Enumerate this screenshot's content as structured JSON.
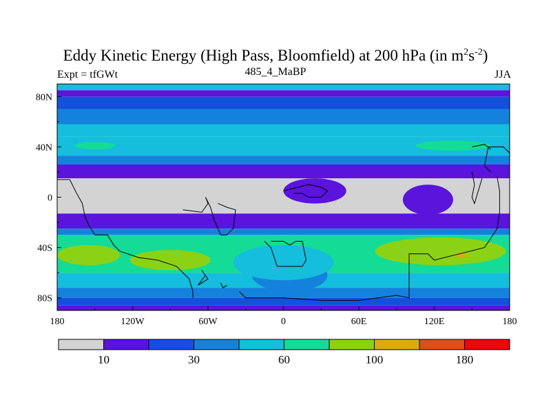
{
  "title_main": "Eddy Kinetic Energy (High Pass, Bloomfield) at 200 hPa (in m",
  "title_sup1": "2",
  "title_s": "s",
  "title_sup2": "-2",
  "title_close": ")",
  "subtitle_left": "Expt = tfGWt",
  "subtitle_center": "485_4_MaBP",
  "subtitle_right": "JJA",
  "chart_data": {
    "type": "heatmap",
    "title": "Eddy Kinetic Energy (High Pass, Bloomfield) at 200 hPa (in m2s-2)",
    "xlim": [
      -180,
      180
    ],
    "ylim": [
      -90,
      90
    ],
    "x_ticks": [
      {
        "value": -180,
        "label": "180"
      },
      {
        "value": -120,
        "label": "120W"
      },
      {
        "value": -60,
        "label": "60W"
      },
      {
        "value": 0,
        "label": "0"
      },
      {
        "value": 60,
        "label": "60E"
      },
      {
        "value": 120,
        "label": "120E"
      },
      {
        "value": 180,
        "label": "180"
      }
    ],
    "y_ticks": [
      {
        "value": 80,
        "label": "80N"
      },
      {
        "value": 40,
        "label": "40N"
      },
      {
        "value": 0,
        "label": "0"
      },
      {
        "value": -40,
        "label": "40S"
      },
      {
        "value": -80,
        "label": "80S"
      }
    ],
    "colorbar": {
      "colors": [
        "#d3d3d3",
        "#5a14dc",
        "#1450dc",
        "#1482dc",
        "#14bedc",
        "#14dc96",
        "#8cd214",
        "#dcaa14",
        "#dc5014",
        "#e60a0a"
      ],
      "labels": [
        {
          "boundary": 1,
          "label": "10"
        },
        {
          "boundary": 3,
          "label": "30"
        },
        {
          "boundary": 5,
          "label": "60"
        },
        {
          "boundary": 7,
          "label": "100"
        },
        {
          "boundary": 9,
          "label": "180"
        }
      ]
    },
    "zonal_bands": [
      {
        "lat_top": 90,
        "lat_bottom": 85,
        "level": 4
      },
      {
        "lat_top": 85,
        "lat_bottom": 80,
        "level": 1
      },
      {
        "lat_top": 80,
        "lat_bottom": 70,
        "level": 2
      },
      {
        "lat_top": 70,
        "lat_bottom": 58,
        "level": 3
      },
      {
        "lat_top": 58,
        "lat_bottom": 48,
        "level": 4
      },
      {
        "lat_top": 48,
        "lat_bottom": 33,
        "level": 4
      },
      {
        "lat_top": 33,
        "lat_bottom": 26,
        "level": 3
      },
      {
        "lat_top": 26,
        "lat_bottom": 15,
        "level": 1
      },
      {
        "lat_top": 15,
        "lat_bottom": -13,
        "level": 0
      },
      {
        "lat_top": -13,
        "lat_bottom": -25,
        "level": 1
      },
      {
        "lat_top": -25,
        "lat_bottom": -30,
        "level": 3
      },
      {
        "lat_top": -30,
        "lat_bottom": -60,
        "level": 5
      },
      {
        "lat_top": -60,
        "lat_bottom": -72,
        "level": 4
      },
      {
        "lat_top": -72,
        "lat_bottom": -80,
        "level": 3
      },
      {
        "lat_top": -80,
        "lat_bottom": -86,
        "level": 2
      },
      {
        "lat_top": -86,
        "lat_bottom": -90,
        "level": 1
      }
    ],
    "blobs": [
      {
        "lon": -150,
        "lat": 41,
        "rlon": 16,
        "rlat": 3,
        "level": 5
      },
      {
        "lon": 135,
        "lat": 41,
        "rlon": 30,
        "rlat": 4,
        "level": 5
      },
      {
        "lon": 125,
        "lat": -43,
        "rlon": 52,
        "rlat": 11,
        "level": 6
      },
      {
        "lon": -155,
        "lat": -46,
        "rlon": 25,
        "rlat": 8,
        "level": 6
      },
      {
        "lon": -90,
        "lat": -50,
        "rlon": 32,
        "rlat": 8,
        "level": 6
      },
      {
        "lon": 141,
        "lat": -46,
        "rlon": 4,
        "rlat": 2,
        "level": 7
      },
      {
        "lon": 5,
        "lat": -62,
        "rlon": 30,
        "rlat": 13,
        "level": 3
      },
      {
        "lon": 0,
        "lat": -52,
        "rlon": 40,
        "rlat": 14,
        "level": 4
      },
      {
        "lon": 25,
        "lat": 5,
        "rlon": 25,
        "rlat": 10,
        "level": 1
      },
      {
        "lon": 115,
        "lat": -2,
        "rlon": 20,
        "rlat": 12,
        "level": 1
      }
    ]
  }
}
